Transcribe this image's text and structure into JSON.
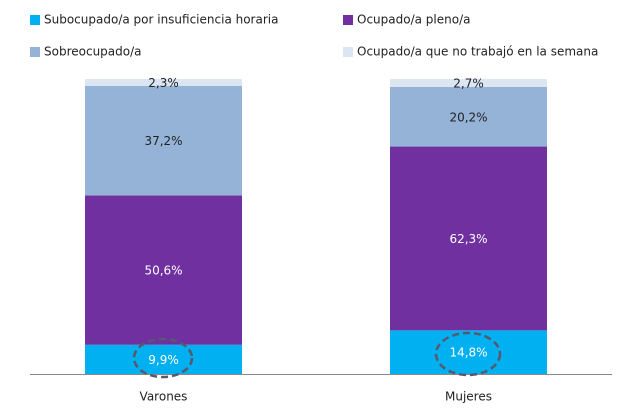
{
  "chart_data": {
    "type": "stacked_bar",
    "categories": [
      "Varones",
      "Mujeres"
    ],
    "series": [
      {
        "name": "Subocupado/a por insuficiencia horaria",
        "color": "#00b0f0",
        "values": [
          9.9,
          14.8
        ],
        "value_labels": [
          "9,9%",
          "14,8%"
        ]
      },
      {
        "name": "Ocupado/a pleno/a",
        "color": "#7030a0",
        "values": [
          50.6,
          62.3
        ],
        "value_labels": [
          "50,6%",
          "62,3%"
        ]
      },
      {
        "name": "Sobreocupado/a",
        "color": "#95b3d7",
        "values": [
          37.2,
          20.2
        ],
        "value_labels": [
          "37,2%",
          "20,2%"
        ]
      },
      {
        "name": "Ocupado/a que no trabajó en la semana",
        "color": "#dce6f2",
        "values": [
          2.3,
          2.7
        ],
        "value_labels": [
          "2,3%",
          "2,7%"
        ]
      }
    ],
    "legend": "top"
  }
}
